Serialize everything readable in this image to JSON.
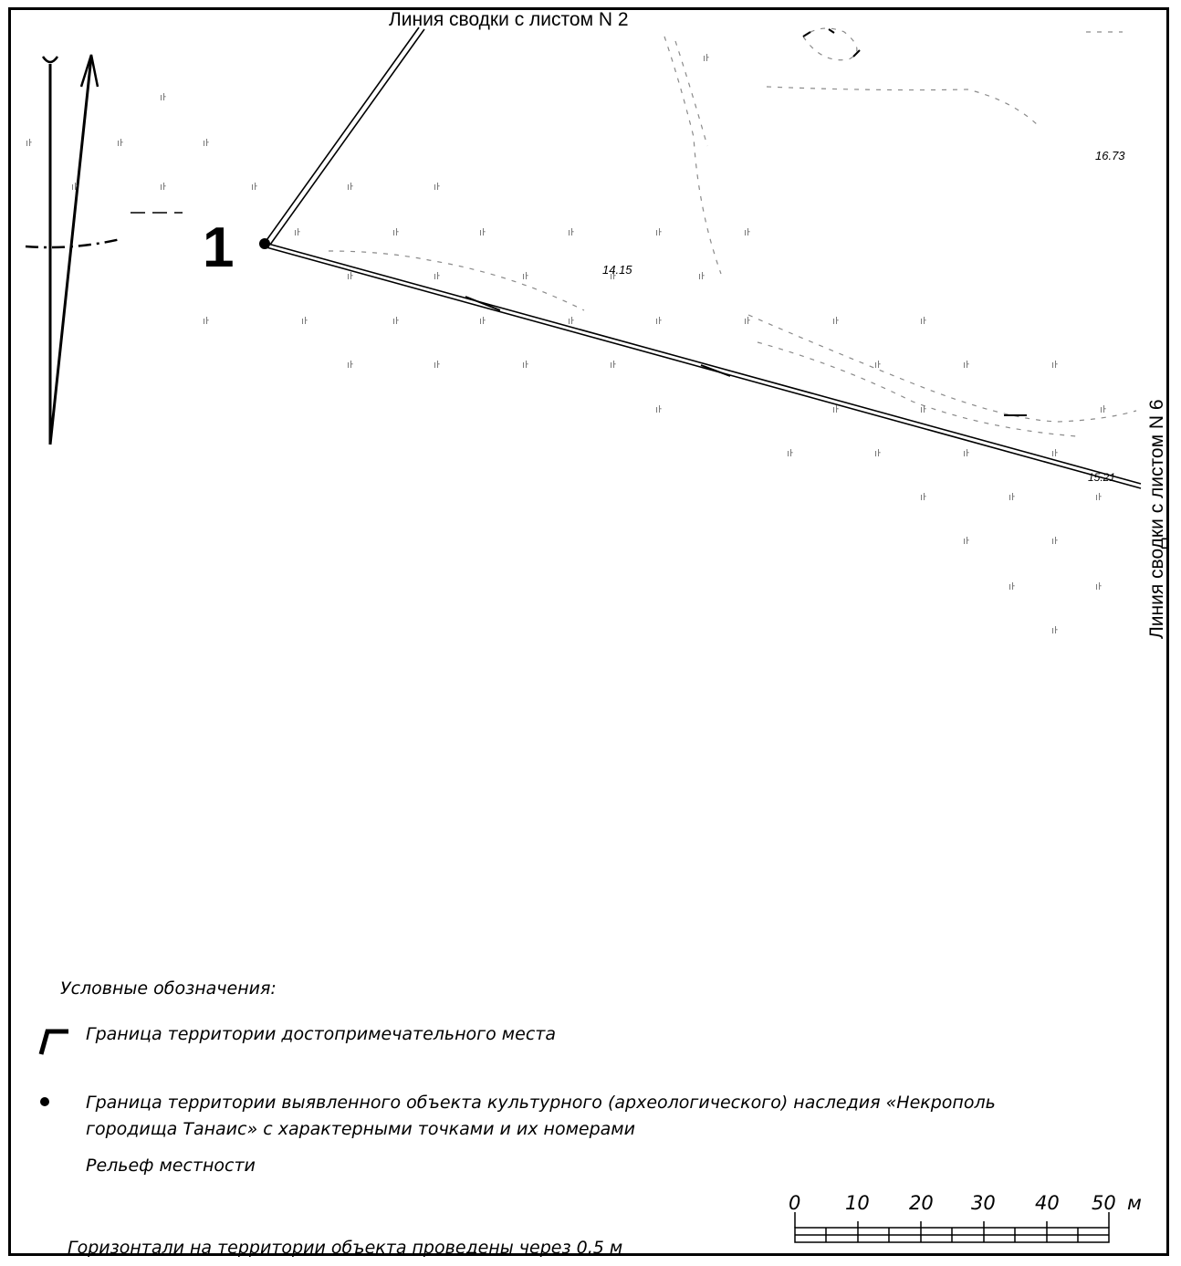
{
  "map": {
    "join_line_top": "Линия сводки с листом N 2",
    "join_line_right": "Линия сводки с листом N 6",
    "point_label": "1",
    "elevations": [
      "16.73",
      "14.15",
      "15.21"
    ]
  },
  "legend": {
    "title": "Условные обозначения:",
    "items": [
      {
        "icon": "boundary-corner-icon",
        "text": "Граница территории достопримечательного места"
      },
      {
        "icon": "point-marker-icon",
        "text_line1": "Граница территории выявленного объекта культурного (археологического) наследия «Некрополь",
        "text_line2": "городища Танаис» с характерными точками и их номерами"
      },
      {
        "icon": "relief-icon",
        "text": "Рельеф местности"
      }
    ],
    "note": "Горизонтали на территории объекта проведены через 0,5 м"
  },
  "scale_bar": {
    "labels": [
      "0",
      "10",
      "20",
      "30",
      "40",
      "50"
    ],
    "unit": "м"
  },
  "colors": {
    "ink": "#000000",
    "faint": "#9a9a9a"
  }
}
